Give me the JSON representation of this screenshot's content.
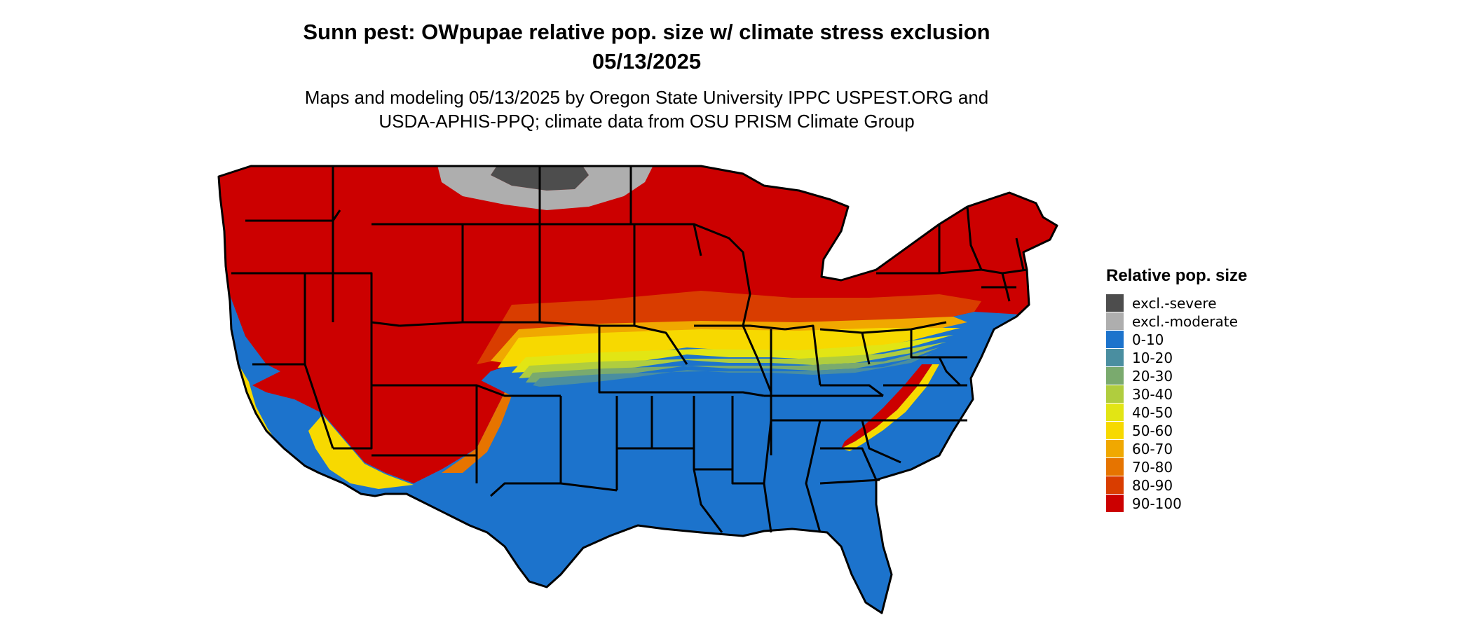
{
  "title": {
    "line1": "Sunn pest: OWpupae relative pop. size w/ climate stress exclusion",
    "line2": "05/13/2025"
  },
  "subtitle": {
    "line1": "Maps and modeling 05/13/2025 by Oregon State University IPPC USPEST.ORG and",
    "line2": "USDA-APHIS-PPQ; climate data from OSU PRISM Climate Group"
  },
  "legend": {
    "title": "Relative pop. size",
    "items": [
      {
        "label": "excl.-severe",
        "color": "#4d4d4d"
      },
      {
        "label": "excl.-moderate",
        "color": "#aeaeae"
      },
      {
        "label": "0-10",
        "color": "#1c73cc"
      },
      {
        "label": "10-20",
        "color": "#4a8ea0"
      },
      {
        "label": "20-30",
        "color": "#7aaa6e"
      },
      {
        "label": "30-40",
        "color": "#b0cd3e"
      },
      {
        "label": "40-50",
        "color": "#e2e514"
      },
      {
        "label": "50-60",
        "color": "#f7d900"
      },
      {
        "label": "60-70",
        "color": "#f0a800"
      },
      {
        "label": "70-80",
        "color": "#e67400"
      },
      {
        "label": "80-90",
        "color": "#d93d00"
      },
      {
        "label": "90-100",
        "color": "#cc0000"
      }
    ]
  }
}
